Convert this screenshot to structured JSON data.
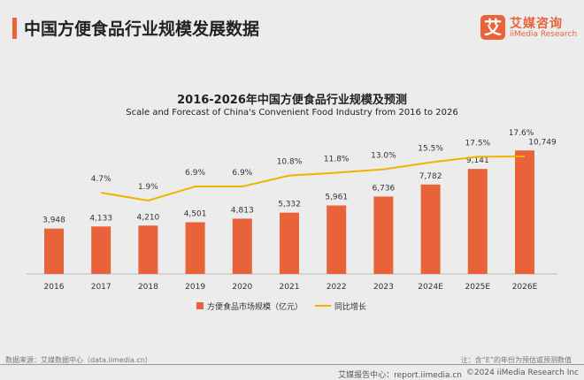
{
  "header": {
    "title": "中国方便食品行业规模发展数据",
    "logo_cn": "艾媒咨询",
    "logo_en": "iiMedia Research",
    "logo_mark": "艾"
  },
  "chart_data": {
    "type": "bar+line",
    "title": "2016-2026年中国方便食品行业规模及预测",
    "subtitle": "Scale and Forecast of China's Convenient Food Industry from 2016 to 2026",
    "categories": [
      "2016",
      "2017",
      "2018",
      "2019",
      "2020",
      "2021",
      "2022",
      "2023",
      "2024E",
      "2025E",
      "2026E"
    ],
    "series": [
      {
        "name": "方便食品市场规模（亿元）",
        "type": "bar",
        "color": "#e8623a",
        "values": [
          3948,
          4133,
          4210,
          4501,
          4813,
          5332,
          5961,
          6736,
          7782,
          9141,
          10749
        ],
        "labels": [
          "3,948",
          "4,133",
          "4,210",
          "4,501",
          "4,813",
          "5,332",
          "5,961",
          "6,736",
          "7,782",
          "9,141",
          "10,749"
        ]
      },
      {
        "name": "同比增长",
        "type": "line",
        "color": "#f0b400",
        "values": [
          null,
          4.7,
          1.9,
          6.9,
          6.9,
          10.8,
          11.8,
          13.0,
          15.5,
          17.5,
          17.6
        ],
        "labels": [
          "",
          "4.7%",
          "1.9%",
          "6.9%",
          "6.9%",
          "10.8%",
          "11.8%",
          "13.0%",
          "15.5%",
          "17.5%",
          "17.6%"
        ]
      }
    ],
    "legend_position": "bottom",
    "grid": false
  },
  "footer": {
    "source": "数据来源：艾媒数据中心（data.iimedia.cn）",
    "note": "注：含“E”的年份为预估或预测数值",
    "site": "艾媒报告中心：report.iimedia.cn",
    "copyright": "©2024  iiMedia Research Inc"
  }
}
